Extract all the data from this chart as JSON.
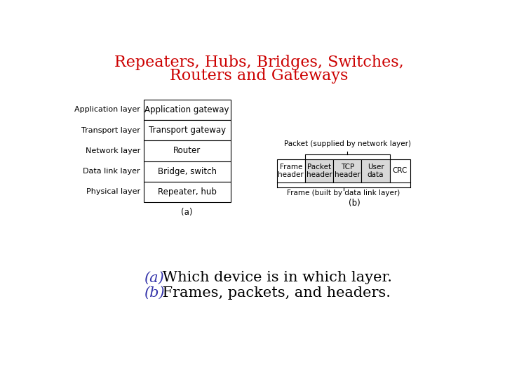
{
  "title_line1": "Repeaters, Hubs, Bridges, Switches,",
  "title_line2": "Routers and Gateways",
  "title_color": "#cc0000",
  "title_fontsize": 16,
  "bg_color": "#ffffff",
  "table_a": {
    "layers": [
      "Application layer",
      "Transport layer",
      "Network layer",
      "Data link layer",
      "Physical layer"
    ],
    "devices": [
      "Application gateway",
      "Transport gateway",
      "Router",
      "Bridge, switch",
      "Repeater, hub"
    ],
    "label": "(a)"
  },
  "table_b": {
    "cells": [
      "Frame\nheader",
      "Packet\nheader",
      "TCP\nheader",
      "User\ndata",
      "CRC"
    ],
    "cell_shaded": [
      false,
      true,
      true,
      true,
      false
    ],
    "packet_label": "Packet (supplied by network layer)",
    "frame_label": "Frame (built by data link layer)",
    "label": "(b)"
  },
  "caption_a_color": "#3333aa",
  "caption_b_color": "#3333aa",
  "caption_text_color": "#000000",
  "caption_a": "(a)",
  "caption_b": "(b)",
  "caption_line1": " Which device is in which layer.",
  "caption_line2": " Frames, packets, and headers.",
  "caption_fontsize": 15
}
